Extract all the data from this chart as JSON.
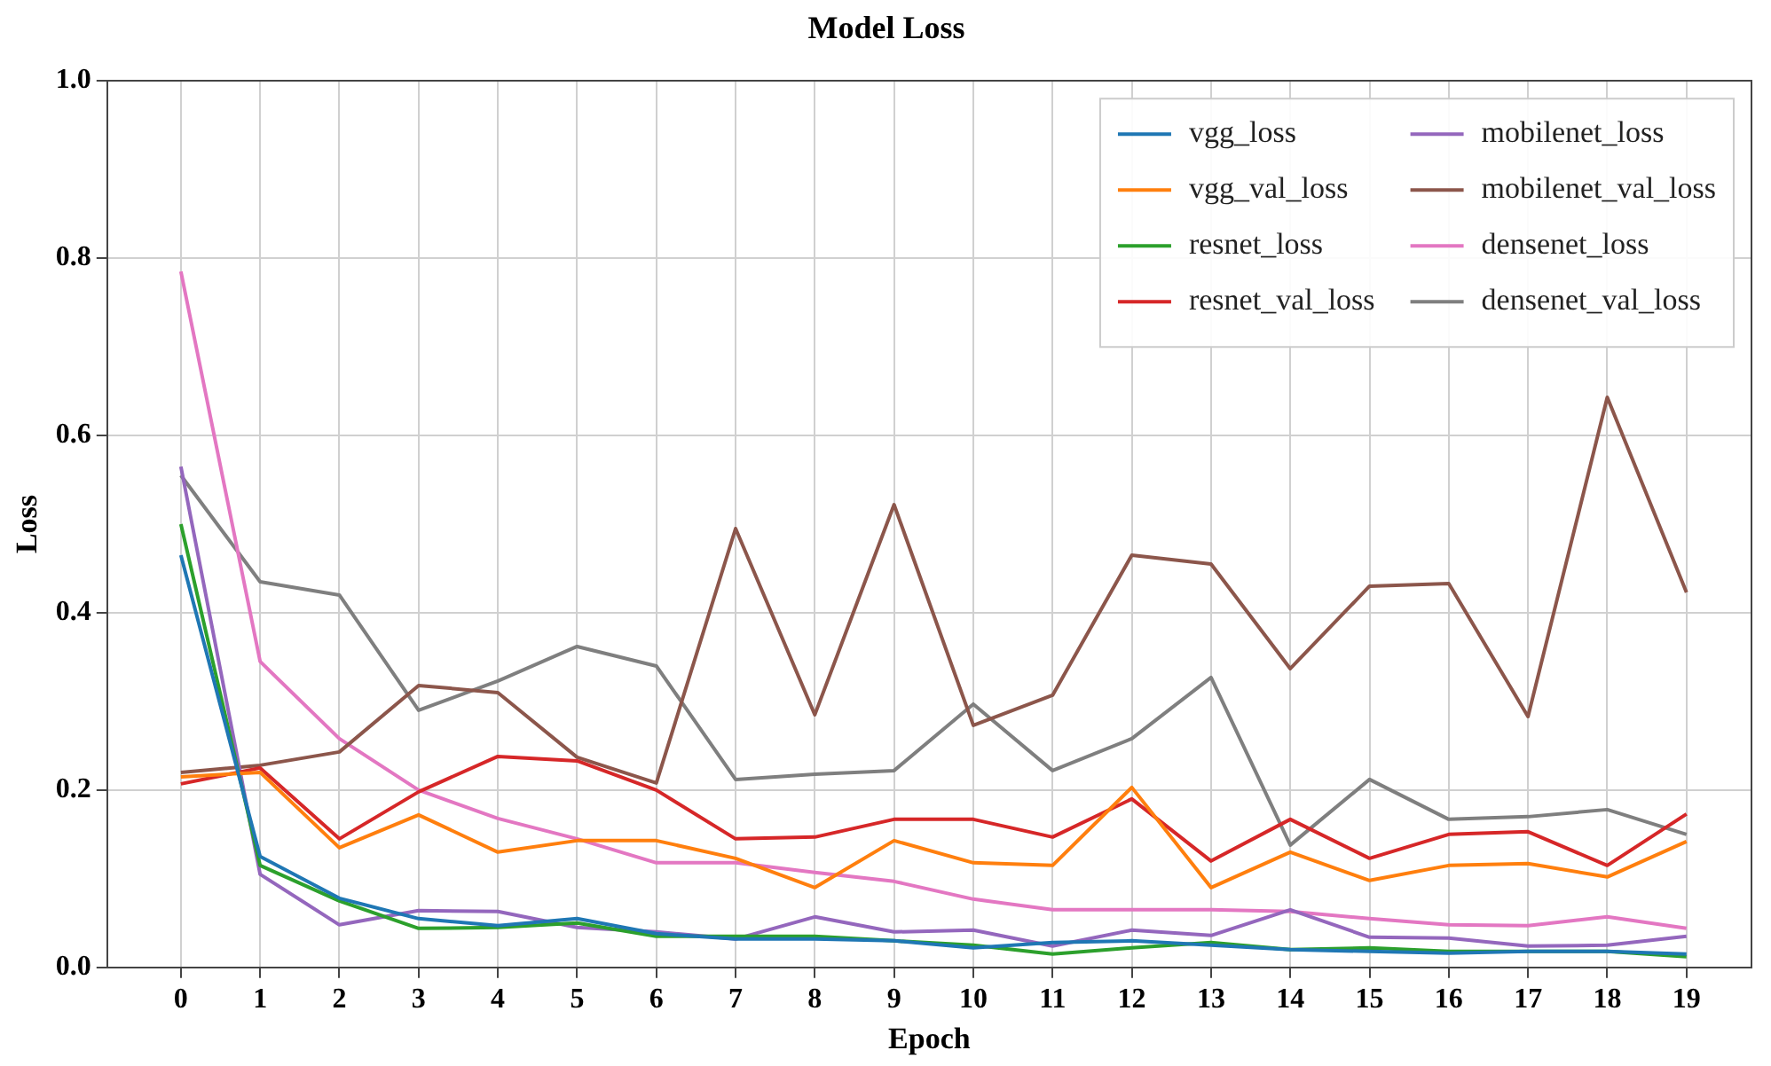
{
  "chart_data": {
    "type": "line",
    "title": "Model Loss",
    "xlabel": "Epoch",
    "ylabel": "Loss",
    "x": [
      0,
      1,
      2,
      3,
      4,
      5,
      6,
      7,
      8,
      9,
      10,
      11,
      12,
      13,
      14,
      15,
      16,
      17,
      18,
      19
    ],
    "xlim": [
      -0.93,
      19.82
    ],
    "xticks": [
      0,
      1,
      2,
      3,
      4,
      5,
      6,
      7,
      8,
      9,
      10,
      11,
      12,
      13,
      14,
      15,
      16,
      17,
      18,
      19
    ],
    "ylim": [
      0,
      1
    ],
    "yticks": [
      {
        "value": 0,
        "label": "0.0"
      },
      {
        "value": 0.2,
        "label": "0.2"
      },
      {
        "value": 0.4,
        "label": "0.4"
      },
      {
        "value": 0.6,
        "label": "0.6"
      },
      {
        "value": 0.8,
        "label": "0.8"
      },
      {
        "value": 1,
        "label": "1.0"
      }
    ],
    "grid": true,
    "legend": "top right",
    "marker": "none",
    "line_style": "solid",
    "series": [
      {
        "name": "vgg_loss",
        "color": "#1f77b4",
        "values": [
          0.465,
          0.125,
          0.078,
          0.055,
          0.047,
          0.055,
          0.038,
          0.032,
          0.032,
          0.03,
          0.022,
          0.028,
          0.03,
          0.025,
          0.02,
          0.018,
          0.016,
          0.018,
          0.018,
          0.015
        ]
      },
      {
        "name": "vgg_val_loss",
        "color": "#ff7f0e",
        "values": [
          0.215,
          0.22,
          0.135,
          0.172,
          0.13,
          0.143,
          0.143,
          0.123,
          0.09,
          0.143,
          0.118,
          0.115,
          0.203,
          0.09,
          0.13,
          0.098,
          0.115,
          0.117,
          0.102,
          0.142
        ]
      },
      {
        "name": "resnet_loss",
        "color": "#2ca02c",
        "values": [
          0.5,
          0.115,
          0.075,
          0.044,
          0.045,
          0.05,
          0.035,
          0.035,
          0.035,
          0.03,
          0.025,
          0.015,
          0.022,
          0.028,
          0.02,
          0.022,
          0.018,
          0.018,
          0.018,
          0.012
        ]
      },
      {
        "name": "resnet_val_loss",
        "color": "#d62728",
        "values": [
          0.207,
          0.225,
          0.145,
          0.198,
          0.238,
          0.233,
          0.2,
          0.145,
          0.147,
          0.167,
          0.167,
          0.147,
          0.19,
          0.12,
          0.167,
          0.123,
          0.15,
          0.153,
          0.115,
          0.173
        ]
      },
      {
        "name": "mobilenet_loss",
        "color": "#9467bd",
        "values": [
          0.565,
          0.105,
          0.048,
          0.064,
          0.063,
          0.045,
          0.04,
          0.032,
          0.057,
          0.04,
          0.042,
          0.024,
          0.042,
          0.036,
          0.065,
          0.034,
          0.033,
          0.024,
          0.025,
          0.035
        ]
      },
      {
        "name": "mobilenet_val_loss",
        "color": "#8c564b",
        "values": [
          0.22,
          0.228,
          0.243,
          0.318,
          0.31,
          0.237,
          0.208,
          0.495,
          0.285,
          0.522,
          0.273,
          0.307,
          0.465,
          0.455,
          0.337,
          0.43,
          0.433,
          0.283,
          0.643,
          0.423
        ]
      },
      {
        "name": "densenet_loss",
        "color": "#e377c2",
        "values": [
          0.785,
          0.345,
          0.258,
          0.2,
          0.168,
          0.145,
          0.118,
          0.118,
          0.107,
          0.097,
          0.077,
          0.065,
          0.065,
          0.065,
          0.063,
          0.055,
          0.048,
          0.047,
          0.057,
          0.044
        ]
      },
      {
        "name": "densenet_val_loss",
        "color": "#7f7f7f",
        "values": [
          0.555,
          0.435,
          0.42,
          0.29,
          0.323,
          0.362,
          0.34,
          0.212,
          0.218,
          0.222,
          0.297,
          0.222,
          0.258,
          0.327,
          0.138,
          0.212,
          0.167,
          0.17,
          0.178,
          0.15
        ]
      }
    ]
  }
}
